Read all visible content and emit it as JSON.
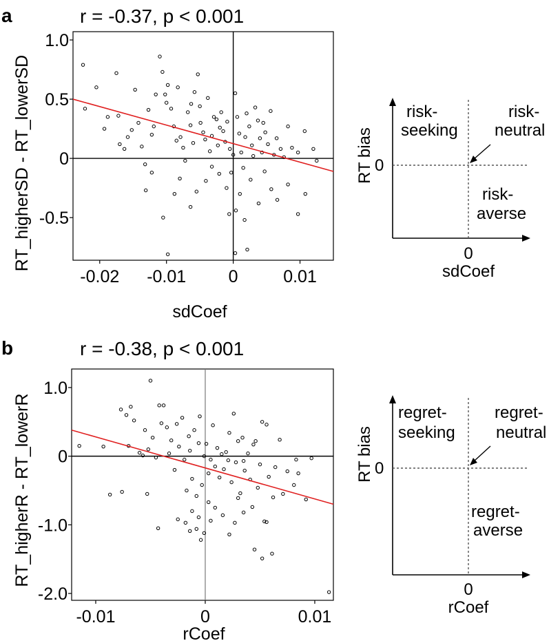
{
  "chart_data": [
    {
      "panel": "a",
      "type": "scatter",
      "title": "r = -0.37, p < 0.001",
      "xlabel": "sdCoef",
      "ylabel": "RT_higherSD - RT_lowerSD",
      "xlim": [
        -0.024,
        0.015
      ],
      "ylim": [
        -0.86,
        1.07
      ],
      "xticks": [
        {
          "v": -0.02,
          "label": "-0.02"
        },
        {
          "v": -0.01,
          "label": "-0.01"
        },
        {
          "v": 0,
          "label": "0"
        },
        {
          "v": 0.01,
          "label": "0.01"
        }
      ],
      "yticks": [
        {
          "v": 1.0,
          "label": "1.0"
        },
        {
          "v": 0.5,
          "label": "0.5"
        },
        {
          "v": 0,
          "label": "0"
        },
        {
          "v": -0.5,
          "label": "-0.5"
        }
      ],
      "grid": false,
      "trendline": {
        "color": "#e02020",
        "x": [
          -0.024,
          0.015
        ],
        "y": [
          0.5,
          -0.11
        ]
      },
      "points": [
        [
          -0.0225,
          0.79
        ],
        [
          -0.0222,
          0.42
        ],
        [
          -0.0205,
          0.6
        ],
        [
          -0.0193,
          0.25
        ],
        [
          -0.0188,
          0.35
        ],
        [
          -0.0175,
          0.72
        ],
        [
          -0.0172,
          0.36
        ],
        [
          -0.017,
          0.12
        ],
        [
          -0.0163,
          0.08
        ],
        [
          -0.0158,
          0.18
        ],
        [
          -0.0152,
          0.24
        ],
        [
          -0.0147,
          0.58
        ],
        [
          -0.0142,
          0.3
        ],
        [
          -0.0137,
          0.1
        ],
        [
          -0.0132,
          -0.05
        ],
        [
          -0.0127,
          0.41
        ],
        [
          -0.0122,
          0.2
        ],
        [
          -0.0119,
          0.27
        ],
        [
          -0.0116,
          0.54
        ],
        [
          -0.011,
          0.86
        ],
        [
          -0.0106,
          0.73
        ],
        [
          -0.0102,
          0.54
        ],
        [
          -0.01,
          0.47
        ],
        [
          -0.0098,
          0.62
        ],
        [
          -0.0093,
          0.42
        ],
        [
          -0.0089,
          0.27
        ],
        [
          -0.0085,
          0.15
        ],
        [
          -0.0083,
          0.6
        ],
        [
          -0.0079,
          0.18
        ],
        [
          -0.0075,
          0.09
        ],
        [
          -0.0072,
          -0.02
        ],
        [
          -0.0068,
          0.39
        ],
        [
          -0.0064,
          0.28
        ],
        [
          -0.0063,
          0.46
        ],
        [
          -0.006,
          0.13
        ],
        [
          -0.0058,
          0.56
        ],
        [
          -0.0053,
          0.71
        ],
        [
          -0.005,
          0.44
        ],
        [
          -0.0049,
          0.3
        ],
        [
          -0.0045,
          0.22
        ],
        [
          -0.0042,
          0.16
        ],
        [
          -0.0038,
          0.51
        ],
        [
          -0.0035,
          0.06
        ],
        [
          -0.0032,
          0.19
        ],
        [
          -0.0029,
          0.35
        ],
        [
          -0.0025,
          0.33
        ],
        [
          -0.0023,
          0.11
        ],
        [
          -0.002,
          0.26
        ],
        [
          -0.0018,
          0.39
        ],
        [
          -0.0015,
          0.23
        ],
        [
          -0.0012,
          0.14
        ],
        [
          -0.0009,
          0.31
        ],
        [
          -0.0005,
          0.08
        ],
        [
          -0.0003,
          -0.12
        ],
        [
          0.0,
          0.03
        ],
        [
          0.0003,
          0.55
        ],
        [
          0.0006,
          0.35
        ],
        [
          0.0009,
          0.21
        ],
        [
          0.0012,
          0.05
        ],
        [
          0.0015,
          -0.08
        ],
        [
          0.0018,
          0.18
        ],
        [
          0.002,
          0.38
        ],
        [
          0.0024,
          0.27
        ],
        [
          0.0028,
          0.11
        ],
        [
          0.003,
          0.02
        ],
        [
          0.0033,
          0.43
        ],
        [
          0.0037,
          0.32
        ],
        [
          0.004,
          0.17
        ],
        [
          0.0043,
          0.05
        ],
        [
          0.0045,
          0.3
        ],
        [
          0.0048,
          0.22
        ],
        [
          0.0052,
          0.12
        ],
        [
          0.0056,
          0.4
        ],
        [
          0.0061,
          0.03
        ],
        [
          0.0065,
          0.17
        ],
        [
          0.0071,
          0.08
        ],
        [
          0.0076,
          0.01
        ],
        [
          0.0082,
          0.27
        ],
        [
          0.0088,
          0.09
        ],
        [
          0.0097,
          0.05
        ],
        [
          0.0107,
          0.23
        ],
        [
          0.012,
          0.08
        ],
        [
          -0.0131,
          -0.27
        ],
        [
          -0.0122,
          -0.12
        ],
        [
          -0.0105,
          -0.5
        ],
        [
          -0.0088,
          -0.3
        ],
        [
          -0.008,
          -0.17
        ],
        [
          -0.0064,
          -0.41
        ],
        [
          -0.0055,
          -0.28
        ],
        [
          -0.0041,
          -0.19
        ],
        [
          -0.0032,
          -0.07
        ],
        [
          -0.0021,
          -0.13
        ],
        [
          -0.001,
          -0.25
        ],
        [
          -0.0006,
          -0.47
        ],
        [
          0.0004,
          -0.44
        ],
        [
          0.001,
          -0.3
        ],
        [
          0.0017,
          -0.52
        ],
        [
          0.0026,
          -0.18
        ],
        [
          0.0038,
          -0.38
        ],
        [
          0.0047,
          -0.11
        ],
        [
          0.0057,
          -0.26
        ],
        [
          0.0066,
          -0.35
        ],
        [
          0.0082,
          -0.22
        ],
        [
          0.0097,
          -0.47
        ],
        [
          0.0108,
          -0.3
        ],
        [
          0.0125,
          -0.02
        ],
        [
          -0.0098,
          -0.81
        ],
        [
          0.0003,
          -0.8
        ],
        [
          0.0021,
          -0.77
        ]
      ]
    },
    {
      "panel": "b",
      "type": "scatter",
      "title": "r = -0.38, p < 0.001",
      "xlabel": "rCoef",
      "ylabel": "RT_higherR - RT_lowerR",
      "xlim": [
        -0.0122,
        0.0117
      ],
      "ylim": [
        -2.1,
        1.27
      ],
      "xticks": [
        {
          "v": -0.01,
          "label": "-0.01"
        },
        {
          "v": 0,
          "label": "0"
        },
        {
          "v": 0.01,
          "label": "0.01"
        }
      ],
      "yticks": [
        {
          "v": 1.0,
          "label": "1.0"
        },
        {
          "v": 0,
          "label": "0"
        },
        {
          "v": -1.0,
          "label": "-1.0"
        },
        {
          "v": -2.0,
          "label": "-2.0"
        }
      ],
      "grid": false,
      "trendline": {
        "color": "#e02020",
        "x": [
          -0.0122,
          0.0117
        ],
        "y": [
          0.38,
          -0.7
        ]
      },
      "points": [
        [
          -0.0115,
          0.15
        ],
        [
          -0.0093,
          0.14
        ],
        [
          -0.0087,
          -0.56
        ],
        [
          -0.0077,
          0.68
        ],
        [
          -0.0076,
          -0.52
        ],
        [
          -0.0072,
          0.6
        ],
        [
          -0.007,
          0.15
        ],
        [
          -0.0068,
          0.72
        ],
        [
          -0.0065,
          0.52
        ],
        [
          -0.006,
          0.05
        ],
        [
          -0.0057,
          0.01
        ],
        [
          -0.0055,
          0.38
        ],
        [
          -0.0053,
          -0.55
        ],
        [
          -0.0052,
          0.1
        ],
        [
          -0.005,
          1.1
        ],
        [
          -0.0048,
          0.27
        ],
        [
          -0.0045,
          -0.02
        ],
        [
          -0.0042,
          0.74
        ],
        [
          -0.004,
          0.48
        ],
        [
          -0.0038,
          0.74
        ],
        [
          -0.0035,
          0.42
        ],
        [
          -0.0033,
          0.04
        ],
        [
          -0.0031,
          0.23
        ],
        [
          -0.0028,
          -0.2
        ],
        [
          -0.0026,
          0.47
        ],
        [
          -0.0024,
          0.14
        ],
        [
          -0.0021,
          0.56
        ],
        [
          -0.0019,
          -0.05
        ],
        [
          -0.0017,
          -0.5
        ],
        [
          -0.0015,
          0.29
        ],
        [
          -0.0014,
          0.08
        ],
        [
          -0.0012,
          -0.33
        ],
        [
          -0.001,
          0.38
        ],
        [
          -0.0008,
          -0.58
        ],
        [
          -0.0006,
          0.19
        ],
        [
          -0.0005,
          0.58
        ],
        [
          -0.0003,
          -0.42
        ],
        [
          -0.0001,
          0.0
        ],
        [
          0.0001,
          0.18
        ],
        [
          0.0003,
          -0.25
        ],
        [
          0.0005,
          -0.05
        ],
        [
          0.0007,
          0.45
        ],
        [
          0.0009,
          -0.15
        ],
        [
          0.0011,
          0.12
        ],
        [
          0.0013,
          -0.31
        ],
        [
          0.0015,
          0.03
        ],
        [
          0.0017,
          -0.19
        ],
        [
          0.0019,
          0.06
        ],
        [
          0.0021,
          -0.06
        ],
        [
          0.0022,
          0.34
        ],
        [
          0.0024,
          -0.38
        ],
        [
          0.0026,
          0.62
        ],
        [
          0.0028,
          -0.09
        ],
        [
          0.003,
          0.22
        ],
        [
          0.0032,
          -0.54
        ],
        [
          0.0034,
          0.27
        ],
        [
          0.0035,
          -0.07
        ],
        [
          0.0036,
          -0.21
        ],
        [
          0.0039,
          0.04
        ],
        [
          0.0041,
          -0.34
        ],
        [
          0.0043,
          -0.74
        ],
        [
          0.0044,
          0.17
        ],
        [
          0.0046,
          0.22
        ],
        [
          0.0048,
          -0.46
        ],
        [
          0.005,
          -0.12
        ],
        [
          0.0052,
          0.5
        ],
        [
          0.0054,
          -0.95
        ],
        [
          0.0056,
          0.46
        ],
        [
          0.0058,
          -0.3
        ],
        [
          0.0062,
          -0.6
        ],
        [
          0.0064,
          -0.16
        ],
        [
          0.0068,
          0.24
        ],
        [
          0.0071,
          -0.55
        ],
        [
          0.0075,
          -0.22
        ],
        [
          0.0081,
          -0.42
        ],
        [
          0.0083,
          -0.05
        ],
        [
          0.0085,
          -0.25
        ],
        [
          0.0092,
          -0.63
        ],
        [
          0.0097,
          -0.03
        ],
        [
          -0.0025,
          -0.92
        ],
        [
          -0.0018,
          -0.97
        ],
        [
          -0.0014,
          -1.09
        ],
        [
          -0.0012,
          -0.8
        ],
        [
          -0.0008,
          -1.06
        ],
        [
          -0.0006,
          -0.89
        ],
        [
          -0.0004,
          -1.22
        ],
        [
          -0.0001,
          -1.12
        ],
        [
          0.0003,
          -0.67
        ],
        [
          0.0005,
          -0.94
        ],
        [
          0.0009,
          -0.75
        ],
        [
          0.0016,
          -0.86
        ],
        [
          0.0022,
          -1.14
        ],
        [
          0.0027,
          -0.97
        ],
        [
          0.003,
          -0.61
        ],
        [
          0.0035,
          -0.82
        ],
        [
          0.0045,
          -1.36
        ],
        [
          0.0052,
          -1.49
        ],
        [
          0.0056,
          -0.96
        ],
        [
          0.0061,
          -1.42
        ],
        [
          -0.0043,
          -1.05
        ],
        [
          0.0113,
          -1.98
        ]
      ]
    }
  ],
  "panel_a": {
    "letter": "a",
    "diagram": {
      "ylabel": "RT bias",
      "y_zero": "0",
      "x_zero": "0",
      "xlabel": "sdCoef",
      "q_seeking": [
        "risk-",
        "seeking"
      ],
      "q_neutral": [
        "risk-",
        "neutral"
      ],
      "q_averse": [
        "risk-",
        "averse"
      ]
    }
  },
  "panel_b": {
    "letter": "b",
    "diagram": {
      "ylabel": "RT bias",
      "y_zero": "0",
      "x_zero": "0",
      "xlabel": "rCoef",
      "q_seeking": [
        "regret-",
        "seeking"
      ],
      "q_neutral": [
        "regret-",
        "neutral"
      ],
      "q_averse": [
        "regret-",
        "averse"
      ]
    }
  }
}
